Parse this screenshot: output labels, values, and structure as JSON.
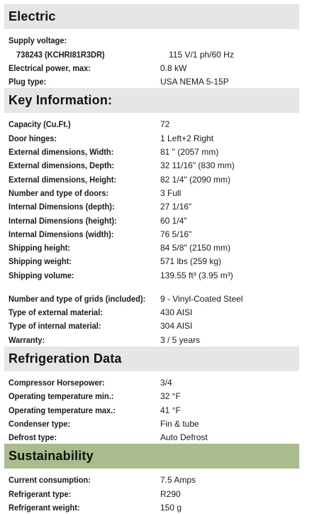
{
  "sections": [
    {
      "title": "Electric",
      "rows": [
        {
          "label": "Supply voltage:",
          "value": ""
        },
        {
          "label": "738243 (KCHRI81R3DR)",
          "value": "115 V/1 ph/60 Hz"
        },
        {
          "label": "Electrical power, max:",
          "value": "0.8 kW"
        },
        {
          "label": "Plug type:",
          "value": "USA NEMA 5-15P"
        }
      ]
    },
    {
      "title": "Key Information:",
      "rows": [
        {
          "label": "Capacity (Cu.Ft.)",
          "value": "72"
        },
        {
          "label": "Door hinges:",
          "value": "1 Left+2 Right"
        },
        {
          "label": "External dimensions, Width:",
          "value": "81 \" (2057 mm)"
        },
        {
          "label": "External dimensions, Depth:",
          "value": "32 11/16\" (830 mm)"
        },
        {
          "label": "External dimensions, Height:",
          "value": "82 1/4\" (2090 mm)"
        },
        {
          "label": "Number and type of doors:",
          "value": "3 Full"
        },
        {
          "label": "Internal Dimensions (depth):",
          "value": "27 1/16\""
        },
        {
          "label": "Internal Dimensions (height):",
          "value": "60 1/4\""
        },
        {
          "label": "Internal Dimensions (width):",
          "value": "76 5/16\""
        },
        {
          "label": "Shipping height:",
          "value": "84 5/8\" (2150 mm)"
        },
        {
          "label": "Shipping weight:",
          "value": "571 lbs (259 kg)"
        },
        {
          "label": "Shipping volume:",
          "value": "139.55 ft³ (3.95 m³)"
        },
        {
          "label": "Number and type of grids (included):",
          "value": "9 - Vinyl-Coated Steel"
        },
        {
          "label": "Type of external material:",
          "value": "430 AISI"
        },
        {
          "label": "Type of internal material:",
          "value": "304 AISI"
        },
        {
          "label": "Warranty:",
          "value": "3 / 5 years"
        }
      ]
    },
    {
      "title": "Refrigeration Data",
      "rows": [
        {
          "label": "Compressor Horsepower:",
          "value": "3/4"
        },
        {
          "label": "Operating temperature min.:",
          "value": "32 °F"
        },
        {
          "label": "Operating temperature max.:",
          "value": "41 °F"
        },
        {
          "label": "Condenser type:",
          "value": "Fin & tube"
        },
        {
          "label": "Defrost type:",
          "value": "Auto Defrost"
        }
      ]
    },
    {
      "title": "Sustainability",
      "rows": [
        {
          "label": "Current consumption:",
          "value": "7.5 Amps"
        },
        {
          "label": "Refrigerant type:",
          "value": "R290"
        },
        {
          "label": "Refrigerant weight:",
          "value": "150 g"
        }
      ]
    }
  ]
}
